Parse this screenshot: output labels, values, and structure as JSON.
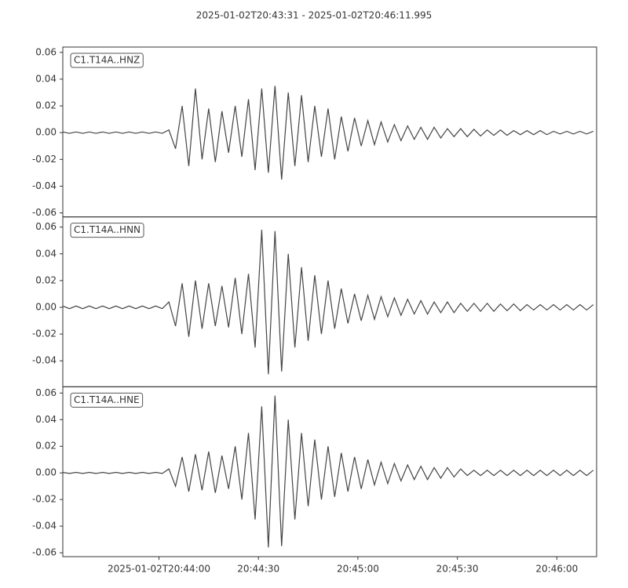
{
  "title": "2025-01-02T20:43:31  -  2025-01-02T20:46:11.995",
  "chart_data": [
    {
      "type": "line",
      "x": [
        74611,
        74613,
        74615,
        74617,
        74619,
        74621,
        74623,
        74625,
        74627,
        74629,
        74631,
        74633,
        74635,
        74637,
        74639,
        74641,
        74643,
        74645,
        74647,
        74649,
        74651,
        74653,
        74655,
        74657,
        74659,
        74661,
        74663,
        74665,
        74667,
        74669,
        74671,
        74673,
        74675,
        74677,
        74679,
        74681,
        74683,
        74685,
        74687,
        74689,
        74691,
        74693,
        74695,
        74697,
        74699,
        74701,
        74703,
        74705,
        74707,
        74709,
        74711,
        74713,
        74715,
        74717,
        74719,
        74721,
        74723,
        74725,
        74727,
        74729,
        74731,
        74733,
        74735,
        74737,
        74739,
        74741,
        74743,
        74745,
        74747,
        74749,
        74751,
        74753,
        74755,
        74757,
        74759,
        74761,
        74763,
        74765,
        74767,
        74769,
        74771
      ],
      "series": [
        {
          "name": "C1.T14A..HNZ",
          "color": "#444444",
          "values": [
            0.0005,
            -0.0005,
            0.0005,
            -0.0005,
            0.0005,
            -0.0005,
            0.0005,
            -0.0005,
            0.0005,
            -0.0005,
            0.0005,
            -0.0005,
            0.0005,
            -0.0005,
            0.0005,
            -0.0005,
            0.002,
            -0.012,
            0.02,
            -0.025,
            0.033,
            -0.02,
            0.018,
            -0.022,
            0.016,
            -0.015,
            0.02,
            -0.018,
            0.025,
            -0.028,
            0.033,
            -0.03,
            0.035,
            -0.035,
            0.03,
            -0.025,
            0.028,
            -0.022,
            0.02,
            -0.018,
            0.018,
            -0.02,
            0.012,
            -0.014,
            0.011,
            -0.01,
            0.009,
            -0.009,
            0.008,
            -0.007,
            0.006,
            -0.006,
            0.005,
            -0.005,
            0.004,
            -0.005,
            0.004,
            -0.004,
            0.003,
            -0.003,
            0.003,
            -0.003,
            0.0025,
            -0.0025,
            0.002,
            -0.002,
            0.002,
            -0.002,
            0.0015,
            -0.0015,
            0.0015,
            -0.0015,
            0.0015,
            -0.0015,
            0.001,
            -0.001,
            0.001,
            -0.001,
            0.001,
            -0.001,
            0.001
          ]
        }
      ],
      "xlim": [
        74611,
        74771.995
      ],
      "ylim": [
        -0.063,
        0.064
      ],
      "yticks": [
        -0.06,
        -0.04,
        -0.02,
        {
          "value": 0,
          "label": "0.00"
        },
        0.02,
        0.04,
        0.06
      ]
    },
    {
      "type": "line",
      "x": [
        74611,
        74613,
        74615,
        74617,
        74619,
        74621,
        74623,
        74625,
        74627,
        74629,
        74631,
        74633,
        74635,
        74637,
        74639,
        74641,
        74643,
        74645,
        74647,
        74649,
        74651,
        74653,
        74655,
        74657,
        74659,
        74661,
        74663,
        74665,
        74667,
        74669,
        74671,
        74673,
        74675,
        74677,
        74679,
        74681,
        74683,
        74685,
        74687,
        74689,
        74691,
        74693,
        74695,
        74697,
        74699,
        74701,
        74703,
        74705,
        74707,
        74709,
        74711,
        74713,
        74715,
        74717,
        74719,
        74721,
        74723,
        74725,
        74727,
        74729,
        74731,
        74733,
        74735,
        74737,
        74739,
        74741,
        74743,
        74745,
        74747,
        74749,
        74751,
        74753,
        74755,
        74757,
        74759,
        74761,
        74763,
        74765,
        74767,
        74769,
        74771
      ],
      "series": [
        {
          "name": "C1.T14A..HNN",
          "color": "#444444",
          "values": [
            0.001,
            -0.001,
            0.001,
            -0.001,
            0.001,
            -0.001,
            0.001,
            -0.001,
            0.001,
            -0.001,
            0.001,
            -0.001,
            0.001,
            -0.001,
            0.001,
            -0.001,
            0.004,
            -0.014,
            0.018,
            -0.022,
            0.02,
            -0.016,
            0.018,
            -0.014,
            0.016,
            -0.015,
            0.022,
            -0.02,
            0.025,
            -0.03,
            0.058,
            -0.05,
            0.057,
            -0.048,
            0.04,
            -0.03,
            0.03,
            -0.025,
            0.024,
            -0.02,
            0.02,
            -0.016,
            0.014,
            -0.012,
            0.01,
            -0.01,
            0.009,
            -0.009,
            0.008,
            -0.007,
            0.007,
            -0.006,
            0.006,
            -0.005,
            0.005,
            -0.005,
            0.004,
            -0.004,
            0.004,
            -0.004,
            0.003,
            -0.003,
            0.003,
            -0.003,
            0.003,
            -0.003,
            0.0025,
            -0.0025,
            0.0025,
            -0.0025,
            0.002,
            -0.002,
            0.002,
            -0.002,
            0.002,
            -0.002,
            0.002,
            -0.002,
            0.002,
            -0.002,
            0.002
          ]
        }
      ],
      "xlim": [
        74611,
        74771.995
      ],
      "ylim": [
        -0.0594,
        0.0676
      ],
      "yticks": [
        -0.04,
        -0.02,
        {
          "value": 0,
          "label": "0.00"
        },
        0.02,
        0.04,
        0.06
      ]
    },
    {
      "type": "line",
      "x": [
        74611,
        74613,
        74615,
        74617,
        74619,
        74621,
        74623,
        74625,
        74627,
        74629,
        74631,
        74633,
        74635,
        74637,
        74639,
        74641,
        74643,
        74645,
        74647,
        74649,
        74651,
        74653,
        74655,
        74657,
        74659,
        74661,
        74663,
        74665,
        74667,
        74669,
        74671,
        74673,
        74675,
        74677,
        74679,
        74681,
        74683,
        74685,
        74687,
        74689,
        74691,
        74693,
        74695,
        74697,
        74699,
        74701,
        74703,
        74705,
        74707,
        74709,
        74711,
        74713,
        74715,
        74717,
        74719,
        74721,
        74723,
        74725,
        74727,
        74729,
        74731,
        74733,
        74735,
        74737,
        74739,
        74741,
        74743,
        74745,
        74747,
        74749,
        74751,
        74753,
        74755,
        74757,
        74759,
        74761,
        74763,
        74765,
        74767,
        74769,
        74771
      ],
      "series": [
        {
          "name": "C1.T14A..HNE",
          "color": "#444444",
          "values": [
            0.0004,
            -0.0004,
            0.0004,
            -0.0004,
            0.0004,
            -0.0004,
            0.0004,
            -0.0004,
            0.0004,
            -0.0004,
            0.0004,
            -0.0004,
            0.0004,
            -0.0004,
            0.0004,
            -0.0004,
            0.003,
            -0.01,
            0.012,
            -0.014,
            0.014,
            -0.013,
            0.016,
            -0.015,
            0.013,
            -0.012,
            0.02,
            -0.02,
            0.03,
            -0.035,
            0.05,
            -0.056,
            0.058,
            -0.055,
            0.04,
            -0.035,
            0.03,
            -0.025,
            0.025,
            -0.02,
            0.02,
            -0.018,
            0.015,
            -0.014,
            0.012,
            -0.012,
            0.01,
            -0.009,
            0.008,
            -0.008,
            0.007,
            -0.006,
            0.006,
            -0.005,
            0.005,
            -0.005,
            0.004,
            -0.004,
            0.004,
            -0.003,
            0.003,
            -0.002,
            0.002,
            -0.002,
            0.002,
            -0.002,
            0.002,
            -0.002,
            0.002,
            -0.002,
            0.002,
            -0.002,
            0.002,
            -0.002,
            0.002,
            -0.002,
            0.002,
            -0.002,
            0.002,
            -0.002,
            0.002
          ]
        }
      ],
      "xlim": [
        74611,
        74771.995
      ],
      "ylim": [
        -0.0629,
        0.0647
      ],
      "yticks": [
        -0.06,
        -0.04,
        -0.02,
        {
          "value": 0,
          "label": "0.00"
        },
        0.02,
        0.04,
        0.06
      ],
      "xticks": [
        {
          "value": 74640,
          "label": "2025-01-02T20:44:00"
        },
        {
          "value": 74670,
          "label": "20:44:30"
        },
        {
          "value": 74700,
          "label": "20:45:00"
        },
        {
          "value": 74730,
          "label": "20:45:30"
        },
        {
          "value": 74760,
          "label": "20:46:00"
        }
      ]
    }
  ]
}
